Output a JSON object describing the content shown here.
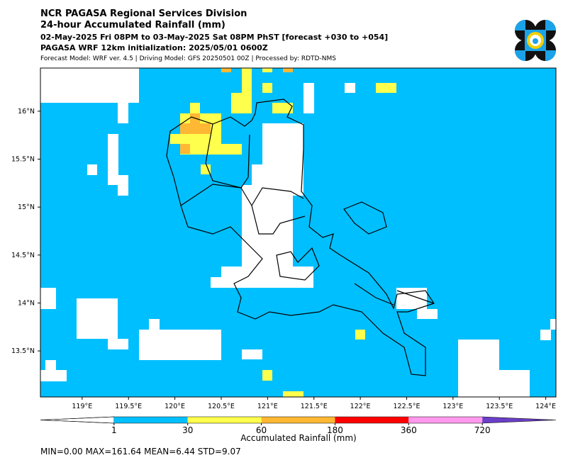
{
  "header": {
    "title": "NCR PAGASA Regional Services Division",
    "subtitle": "24-hour Accumulated Rainfall (mm)",
    "period": "02-May-2025 Fri 08PM to 03-May-2025 Sat 08PM PhST [forecast +030 to +054]",
    "init": "PAGASA WRF 12km initialization: 2025/05/01 0600Z",
    "model": "Forecast Model: WRF ver. 4.5 | Driving Model: GFS 20250501 00Z | Processed by: RDTD-NMS"
  },
  "map": {
    "xlim": [
      118.55,
      124.11
    ],
    "ylim": [
      13.02,
      16.45
    ],
    "xticks": [
      {
        "value": 119,
        "label": "119°E"
      },
      {
        "value": 119.5,
        "label": "119.5°E"
      },
      {
        "value": 120,
        "label": "120°E"
      },
      {
        "value": 120.5,
        "label": "120.5°E"
      },
      {
        "value": 121,
        "label": "121°E"
      },
      {
        "value": 121.5,
        "label": "121.5°E"
      },
      {
        "value": 122,
        "label": "122°E"
      },
      {
        "value": 122.5,
        "label": "122.5°E"
      },
      {
        "value": 123,
        "label": "123°E"
      },
      {
        "value": 123.5,
        "label": "123.5°E"
      },
      {
        "value": 124,
        "label": "124°E"
      }
    ],
    "yticks": [
      {
        "value": 13.5,
        "label": "13.5°N"
      },
      {
        "value": 14,
        "label": "14°N"
      },
      {
        "value": 14.5,
        "label": "14.5°N"
      },
      {
        "value": 15,
        "label": "15°N"
      },
      {
        "value": 15.5,
        "label": "15.5°N"
      },
      {
        "value": 16,
        "label": "16°N"
      }
    ]
  },
  "colorbar": {
    "label": "Accumulated Rainfall (mm)",
    "levels": [
      1,
      30,
      60,
      180,
      360,
      720
    ],
    "colors": [
      "#00bfff",
      "#ffff4d",
      "#ffb833",
      "#ff0000",
      "#ff99ee",
      "#6a3fc8"
    ]
  },
  "stats": "MIN=0.00   MAX=161.64   MEAN=6.44   STD=9.07"
}
